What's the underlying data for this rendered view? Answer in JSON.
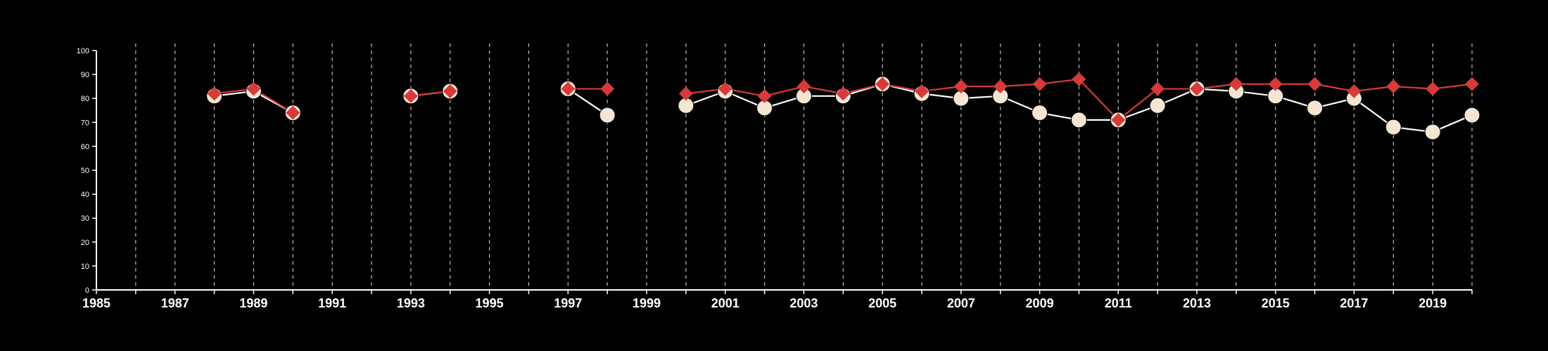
{
  "chart_data": {
    "type": "line",
    "title": "",
    "xlabel": "",
    "ylabel": "",
    "xlim": [
      1985,
      2020
    ],
    "ylim": [
      0,
      100
    ],
    "x_ticks": [
      "1985",
      "1987",
      "1989",
      "1991",
      "1993",
      "1995",
      "1997",
      "1999",
      "2001",
      "2003",
      "2005",
      "2007",
      "2009",
      "2011",
      "2013",
      "2015",
      "2017",
      "2019"
    ],
    "y_ticks": [
      "0",
      "10",
      "20",
      "30",
      "40",
      "50",
      "60",
      "70",
      "80",
      "90",
      "100"
    ],
    "grid": "vertical dashed lines at every year",
    "colors": {
      "background": "#000000",
      "axis": "#ffffff",
      "grid": "#bbbbbb"
    },
    "series": [
      {
        "marker": "circle",
        "color": "#f5e6d3",
        "line_color": "#ffffff",
        "points": [
          [
            1988,
            81
          ],
          [
            1989,
            83
          ],
          [
            1990,
            74
          ],
          null,
          [
            1993,
            81
          ],
          [
            1994,
            83
          ],
          null,
          [
            1997,
            84
          ],
          [
            1998,
            73
          ],
          null,
          [
            2000,
            77
          ],
          [
            2001,
            83
          ],
          [
            2002,
            76
          ],
          [
            2003,
            81
          ],
          [
            2004,
            81
          ],
          [
            2005,
            86
          ],
          [
            2006,
            82
          ],
          [
            2007,
            80
          ],
          [
            2008,
            81
          ],
          [
            2009,
            74
          ],
          [
            2010,
            71
          ],
          [
            2011,
            71
          ],
          [
            2012,
            77
          ],
          [
            2013,
            84
          ],
          [
            2014,
            83
          ],
          [
            2015,
            81
          ],
          [
            2016,
            76
          ],
          [
            2017,
            80
          ],
          [
            2018,
            68
          ],
          [
            2019,
            66
          ],
          [
            2020,
            73
          ]
        ]
      },
      {
        "marker": "diamond",
        "color": "#d63a3a",
        "line_color": "#d63a3a",
        "points": [
          [
            1988,
            82
          ],
          [
            1989,
            84
          ],
          [
            1990,
            74
          ],
          null,
          [
            1993,
            81
          ],
          [
            1994,
            83
          ],
          null,
          [
            1997,
            84
          ],
          [
            1998,
            84
          ],
          null,
          [
            2000,
            82
          ],
          [
            2001,
            84
          ],
          [
            2002,
            81
          ],
          [
            2003,
            85
          ],
          [
            2004,
            82
          ],
          [
            2005,
            86
          ],
          [
            2006,
            83
          ],
          [
            2007,
            85
          ],
          [
            2008,
            85
          ],
          [
            2009,
            86
          ],
          [
            2010,
            88
          ],
          [
            2011,
            71
          ],
          [
            2012,
            84
          ],
          [
            2013,
            84
          ],
          [
            2014,
            86
          ],
          [
            2015,
            86
          ],
          [
            2016,
            86
          ],
          [
            2017,
            83
          ],
          [
            2018,
            85
          ],
          [
            2019,
            84
          ],
          [
            2020,
            86
          ]
        ]
      }
    ]
  }
}
